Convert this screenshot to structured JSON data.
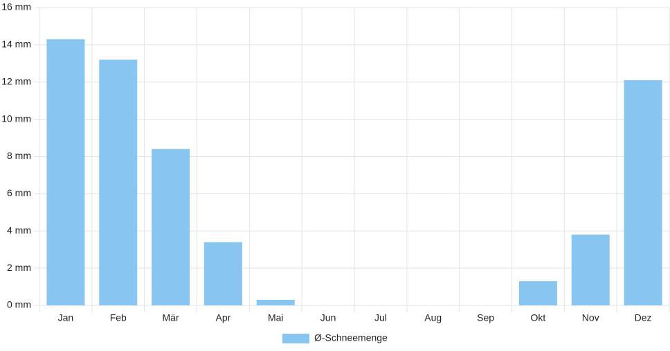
{
  "chart_data": {
    "type": "bar",
    "categories": [
      "Jan",
      "Feb",
      "Mär",
      "Apr",
      "Mai",
      "Jun",
      "Jul",
      "Aug",
      "Sep",
      "Okt",
      "Nov",
      "Dez"
    ],
    "series": [
      {
        "name": "Ø-Schneemenge",
        "color": "#88c6f1",
        "values": [
          14.3,
          13.2,
          8.4,
          3.4,
          0.3,
          0,
          0,
          0,
          0,
          1.3,
          3.8,
          12.1
        ]
      }
    ],
    "ylim": [
      0,
      16
    ],
    "yticks": [
      {
        "value": 0,
        "label": "0 mm"
      },
      {
        "value": 2,
        "label": "2 mm"
      },
      {
        "value": 4,
        "label": "4 mm"
      },
      {
        "value": 6,
        "label": "6 mm"
      },
      {
        "value": 8,
        "label": "8 mm"
      },
      {
        "value": 10,
        "label": "10 mm"
      },
      {
        "value": 12,
        "label": "12 mm"
      },
      {
        "value": 14,
        "label": "14 mm"
      },
      {
        "value": 16,
        "label": "16 mm"
      }
    ],
    "grid": true,
    "legend": "bottom"
  }
}
